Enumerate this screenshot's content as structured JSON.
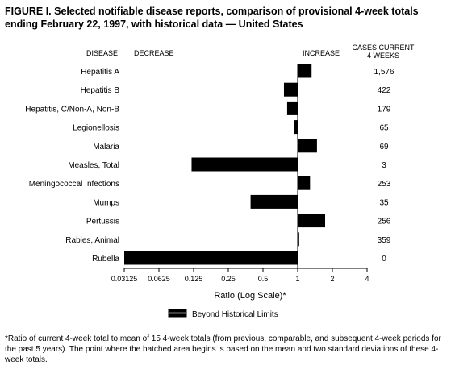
{
  "title": "FIGURE I. Selected notifiable disease reports, comparison of provisional 4-week totals ending February 22, 1997, with historical data — United States",
  "headers": {
    "disease": "DISEASE",
    "decrease": "DECREASE",
    "increase": "INCREASE",
    "cases_line1": "CASES CURRENT",
    "cases_line2": "4 WEEKS"
  },
  "chart_data": {
    "type": "bar",
    "orientation": "horizontal",
    "xscale": "log2",
    "xlim": [
      0.03125,
      4
    ],
    "baseline": 1,
    "xlabel": "Ratio (Log Scale)*",
    "xticks": [
      {
        "value": 0.03125,
        "label": "0.03125"
      },
      {
        "value": 0.0625,
        "label": "0.0625"
      },
      {
        "value": 0.125,
        "label": "0.125"
      },
      {
        "value": 0.25,
        "label": "0.25"
      },
      {
        "value": 0.5,
        "label": "0.5"
      },
      {
        "value": 1,
        "label": "1"
      },
      {
        "value": 2,
        "label": "2"
      },
      {
        "value": 4,
        "label": "4"
      }
    ],
    "categories": [
      "Hepatitis A",
      "Hepatitis B",
      "Hepatitis, C/Non-A, Non-B",
      "Legionellosis",
      "Malaria",
      "Measles, Total",
      "Meningococcal Infections",
      "Mumps",
      "Pertussis",
      "Rabies, Animal",
      "Rubella"
    ],
    "values": [
      1.32,
      0.76,
      0.81,
      0.93,
      1.47,
      0.12,
      1.28,
      0.39,
      1.73,
      1.03,
      0.031
    ],
    "cases": [
      "1,576",
      "422",
      "179",
      "65",
      "69",
      "3",
      "253",
      "35",
      "256",
      "359",
      "0"
    ],
    "legend": {
      "label": "Beyond Historical Limits",
      "position": "bottom-center"
    },
    "grid": false,
    "bar_color": "#000000"
  },
  "footnote": "*Ratio of current 4-week total to mean of 15 4-week totals (from previous, comparable, and subsequent 4-week periods for the past 5 years). The point where the hatched area begins is based on the mean and two standard deviations of these 4-week totals."
}
